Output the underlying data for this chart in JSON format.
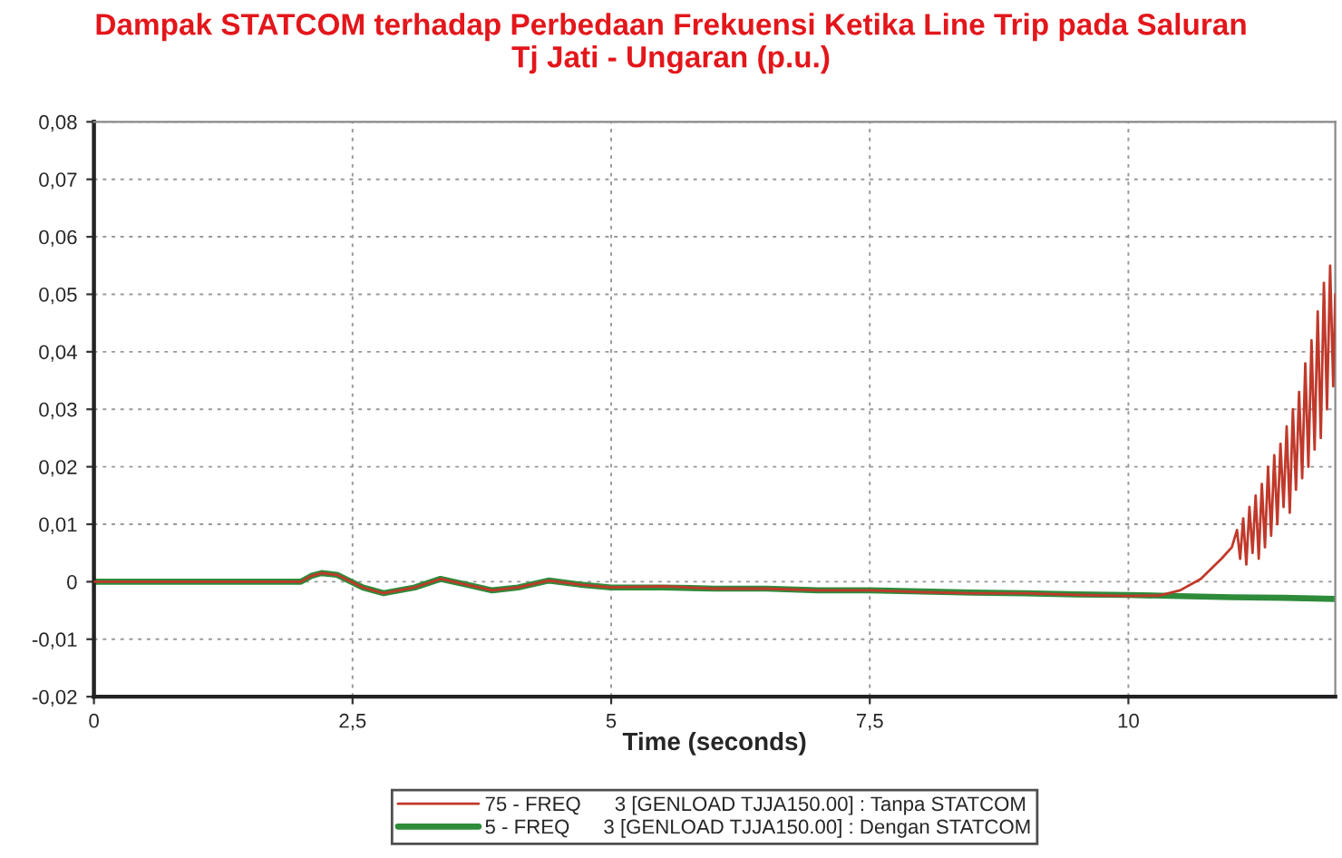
{
  "chart_data": {
    "type": "line",
    "title": "Dampak STATCOM terhadap Perbedaan Frekuensi Ketika Line Trip pada Saluran\nTj Jati - Ungaran (p.u.)",
    "xlabel": "Time (seconds)",
    "series": [
      {
        "name": "75 - FREQ      3 [GENLOAD TJJA150.00] : Tanpa STATCOM",
        "color": "#c0392b",
        "x": [
          0,
          2.0,
          2.1,
          2.2,
          2.35,
          2.6,
          2.8,
          3.1,
          3.35,
          3.6,
          3.85,
          4.1,
          4.4,
          4.7,
          5.0,
          5.5,
          6.0,
          6.5,
          7.0,
          7.5,
          8.0,
          8.5,
          9.0,
          9.5,
          10.0,
          10.3,
          10.5,
          10.7,
          10.9,
          11.0,
          11.05,
          11.08,
          11.11,
          11.14,
          11.17,
          11.2,
          11.23,
          11.26,
          11.29,
          11.32,
          11.35,
          11.38,
          11.41,
          11.44,
          11.47,
          11.5,
          11.53,
          11.56,
          11.59,
          11.62,
          11.65,
          11.68,
          11.71,
          11.74,
          11.77,
          11.8,
          11.83,
          11.86,
          11.89,
          11.92,
          11.95,
          11.98,
          12.0
        ],
        "values": [
          0,
          0,
          0.001,
          0.0015,
          0.0012,
          -0.001,
          -0.002,
          -0.001,
          0.0005,
          -0.0005,
          -0.0015,
          -0.001,
          0.0002,
          -0.0005,
          -0.001,
          -0.0008,
          -0.0012,
          -0.0012,
          -0.0015,
          -0.0015,
          -0.0018,
          -0.002,
          -0.002,
          -0.0023,
          -0.0025,
          -0.0024,
          -0.0015,
          0.0005,
          0.004,
          0.006,
          0.009,
          0.004,
          0.011,
          0.003,
          0.013,
          0.005,
          0.015,
          0.004,
          0.017,
          0.006,
          0.02,
          0.008,
          0.022,
          0.01,
          0.024,
          0.013,
          0.027,
          0.012,
          0.03,
          0.016,
          0.033,
          0.018,
          0.038,
          0.02,
          0.042,
          0.023,
          0.047,
          0.025,
          0.052,
          0.03,
          0.055,
          0.034,
          0.05
        ]
      },
      {
        "name": "5 - FREQ      3 [GENLOAD TJJA150.00] : Dengan STATCOM",
        "color": "#2e8b3a",
        "x": [
          0,
          2.0,
          2.1,
          2.2,
          2.35,
          2.6,
          2.8,
          3.1,
          3.35,
          3.6,
          3.85,
          4.1,
          4.4,
          4.7,
          5.0,
          5.5,
          6.0,
          6.5,
          7.0,
          7.5,
          8.0,
          8.5,
          9.0,
          9.5,
          10.0,
          10.5,
          11.0,
          11.5,
          12.0
        ],
        "values": [
          0,
          0,
          0.001,
          0.0015,
          0.0012,
          -0.001,
          -0.002,
          -0.001,
          0.0005,
          -0.0005,
          -0.0015,
          -0.001,
          0.0002,
          -0.0005,
          -0.001,
          -0.001,
          -0.0012,
          -0.0012,
          -0.0015,
          -0.0015,
          -0.0017,
          -0.0019,
          -0.002,
          -0.0022,
          -0.0023,
          -0.0025,
          -0.0027,
          -0.0028,
          -0.003
        ]
      }
    ],
    "xlim": [
      0,
      12
    ],
    "ylim": [
      -0.02,
      0.08
    ],
    "xticks": [
      0,
      {
        "value": 2.5,
        "label": "2,5"
      },
      5,
      {
        "value": 7.5,
        "label": "7,5"
      },
      10
    ],
    "yticks": [
      {
        "value": -0.02,
        "label": "-0,02"
      },
      {
        "value": -0.01,
        "label": "-0,01"
      },
      0,
      {
        "value": 0.01,
        "label": "0,01"
      },
      {
        "value": 0.02,
        "label": "0,02"
      },
      {
        "value": 0.03,
        "label": "0,03"
      },
      {
        "value": 0.04,
        "label": "0,04"
      },
      {
        "value": 0.05,
        "label": "0,05"
      },
      {
        "value": 0.06,
        "label": "0,06"
      },
      {
        "value": 0.07,
        "label": "0,07"
      },
      {
        "value": 0.08,
        "label": "0,08"
      }
    ],
    "grid": true,
    "legend": "bottom",
    "line_style": "solid",
    "marker": "none"
  }
}
